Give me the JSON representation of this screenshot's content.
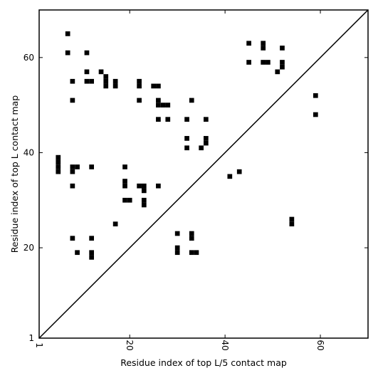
{
  "chart_data": {
    "type": "heatmap",
    "xlabel": "Residue index of top L/5 contact map",
    "ylabel": "Residue index of top L contact map",
    "xlim": [
      1,
      70
    ],
    "ylim": [
      1,
      70
    ],
    "xticks": [
      1,
      20,
      40,
      60
    ],
    "yticks": [
      1,
      20,
      40,
      60
    ],
    "xtick_labels": [
      "1",
      "20",
      "40",
      "60"
    ],
    "ytick_labels": [
      "1",
      "20",
      "40",
      "60"
    ],
    "diagonal": true,
    "grid": false,
    "contacts": [
      [
        7,
        65
      ],
      [
        7,
        61
      ],
      [
        11,
        61
      ],
      [
        11,
        57
      ],
      [
        14,
        57
      ],
      [
        8,
        55
      ],
      [
        11,
        55
      ],
      [
        12,
        55
      ],
      [
        15,
        56
      ],
      [
        15,
        55
      ],
      [
        15,
        54
      ],
      [
        17,
        55
      ],
      [
        17,
        54
      ],
      [
        22,
        55
      ],
      [
        22,
        54
      ],
      [
        25,
        54
      ],
      [
        26,
        54
      ],
      [
        8,
        51
      ],
      [
        22,
        51
      ],
      [
        26,
        51
      ],
      [
        26,
        50
      ],
      [
        27,
        50
      ],
      [
        28,
        50
      ],
      [
        33,
        51
      ],
      [
        26,
        47
      ],
      [
        28,
        47
      ],
      [
        32,
        47
      ],
      [
        36,
        47
      ],
      [
        32,
        43
      ],
      [
        36,
        43
      ],
      [
        36,
        42
      ],
      [
        32,
        41
      ],
      [
        35,
        41
      ],
      [
        5,
        39
      ],
      [
        5,
        38
      ],
      [
        5,
        37
      ],
      [
        5,
        36
      ],
      [
        8,
        37
      ],
      [
        9,
        37
      ],
      [
        8,
        36
      ],
      [
        12,
        37
      ],
      [
        19,
        37
      ],
      [
        8,
        33
      ],
      [
        19,
        34
      ],
      [
        19,
        33
      ],
      [
        22,
        33
      ],
      [
        23,
        33
      ],
      [
        23,
        32
      ],
      [
        26,
        33
      ],
      [
        19,
        30
      ],
      [
        20,
        30
      ],
      [
        23,
        30
      ],
      [
        23,
        29
      ],
      [
        17,
        25
      ],
      [
        8,
        22
      ],
      [
        12,
        22
      ],
      [
        30,
        23
      ],
      [
        33,
        23
      ],
      [
        33,
        22
      ],
      [
        9,
        19
      ],
      [
        12,
        19
      ],
      [
        12,
        18
      ],
      [
        30,
        20
      ],
      [
        30,
        19
      ],
      [
        33,
        19
      ],
      [
        34,
        19
      ],
      [
        41,
        35
      ],
      [
        43,
        36
      ],
      [
        45,
        63
      ],
      [
        48,
        63
      ],
      [
        48,
        62
      ],
      [
        52,
        62
      ],
      [
        45,
        59
      ],
      [
        48,
        59
      ],
      [
        49,
        59
      ],
      [
        52,
        59
      ],
      [
        52,
        58
      ],
      [
        51,
        57
      ],
      [
        59,
        52
      ],
      [
        59,
        48
      ],
      [
        54,
        26
      ],
      [
        54,
        25
      ]
    ]
  }
}
